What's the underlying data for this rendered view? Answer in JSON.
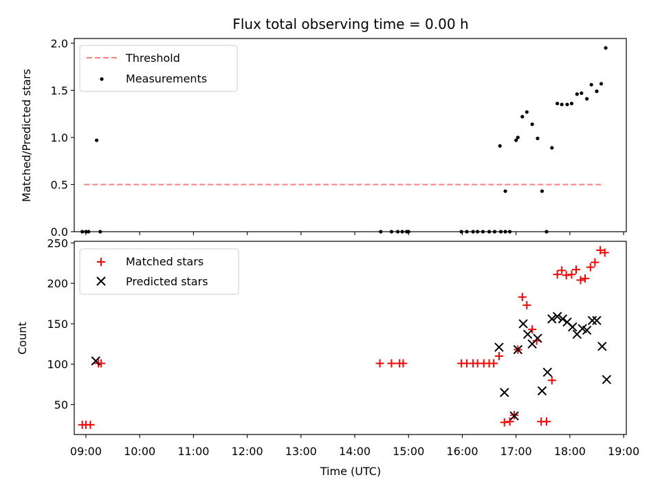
{
  "figure": {
    "title": "Flux total observing time = 0.00 h",
    "xlabel": "Time (UTC)"
  },
  "chart_data": [
    {
      "type": "scatter",
      "ylabel": "Matched/Predicted stars",
      "xlim": [
        "08:47",
        "19:03"
      ],
      "ylim": [
        0,
        2.05
      ],
      "yticks": [
        0.0,
        0.5,
        1.0,
        1.5,
        2.0
      ],
      "ytick_labels": [
        "0.0",
        "0.5",
        "1.0",
        "1.5",
        "2.0"
      ],
      "xticks": [
        "09:00",
        "10:00",
        "11:00",
        "12:00",
        "13:00",
        "14:00",
        "15:00",
        "16:00",
        "17:00",
        "18:00",
        "19:00"
      ],
      "legend_position": "top-left",
      "series": [
        {
          "name": "Threshold",
          "kind": "dashed-line",
          "color": "#ff7f7f",
          "x": [
            "08:58",
            "18:38"
          ],
          "y": [
            0.5,
            0.5
          ]
        },
        {
          "name": "Measurements",
          "kind": "dot",
          "color": "#000000",
          "x": [
            "08:56",
            "09:00",
            "09:03",
            "09:12",
            "09:16",
            "14:29",
            "14:41",
            "14:48",
            "14:53",
            "14:58",
            "15:00",
            "15:59",
            "16:05",
            "16:12",
            "16:17",
            "16:23",
            "16:30",
            "16:36",
            "16:42",
            "16:48",
            "16:43",
            "16:48",
            "16:53",
            "17:00",
            "17:02",
            "17:07",
            "17:12",
            "17:18",
            "17:24",
            "17:29",
            "17:34",
            "17:40",
            "17:46",
            "17:51",
            "17:57",
            "18:02",
            "18:08",
            "18:13",
            "18:19",
            "18:24",
            "18:30",
            "18:35",
            "18:40"
          ],
          "y": [
            0,
            0,
            0,
            0.97,
            0,
            0,
            0,
            0,
            0,
            0,
            0,
            0,
            0,
            0,
            0,
            0,
            0,
            0,
            0.91,
            0.43,
            0,
            0,
            0,
            0.97,
            1.0,
            1.22,
            1.27,
            1.14,
            0.99,
            0.43,
            0,
            0.89,
            1.36,
            1.35,
            1.35,
            1.36,
            1.46,
            1.47,
            1.41,
            1.56,
            1.49,
            1.57,
            1.95
          ]
        }
      ]
    },
    {
      "type": "scatter",
      "ylabel": "Count",
      "xlim": [
        "08:47",
        "19:03"
      ],
      "ylim": [
        13,
        252
      ],
      "yticks": [
        50,
        100,
        150,
        200,
        250
      ],
      "ytick_labels": [
        "50",
        "100",
        "150",
        "200",
        "250"
      ],
      "xticks": [
        "09:00",
        "10:00",
        "11:00",
        "12:00",
        "13:00",
        "14:00",
        "15:00",
        "16:00",
        "17:00",
        "18:00",
        "19:00"
      ],
      "xtick_labels": [
        "09:00",
        "10:00",
        "11:00",
        "12:00",
        "13:00",
        "14:00",
        "15:00",
        "16:00",
        "17:00",
        "18:00",
        "19:00"
      ],
      "legend_position": "top-left",
      "series": [
        {
          "name": "Matched stars",
          "kind": "plus",
          "color": "#ff0000",
          "x": [
            "08:56",
            "09:00",
            "09:05",
            "09:14",
            "09:17",
            "14:28",
            "14:41",
            "14:50",
            "14:54",
            "15:59",
            "16:05",
            "16:12",
            "16:17",
            "16:24",
            "16:30",
            "16:35",
            "16:41",
            "16:47",
            "16:53",
            "16:58",
            "17:02",
            "17:07",
            "17:12",
            "17:18",
            "17:23",
            "17:28",
            "17:34",
            "17:40",
            "17:46",
            "17:51",
            "17:56",
            "18:02",
            "18:07",
            "18:12",
            "18:17",
            "18:23",
            "18:28",
            "18:34",
            "18:39"
          ],
          "y": [
            25,
            25,
            25,
            101,
            101,
            101,
            101,
            101,
            101,
            101,
            101,
            101,
            101,
            101,
            101,
            101,
            110,
            28,
            29,
            37,
            118,
            183,
            173,
            143,
            129,
            29,
            29,
            80,
            211,
            216,
            210,
            211,
            217,
            204,
            206,
            220,
            226,
            241,
            238
          ]
        },
        {
          "name": "Predicted stars",
          "kind": "x",
          "color": "#000000",
          "x": [
            "09:11",
            "16:41",
            "16:47",
            "16:58",
            "17:02",
            "17:08",
            "17:13",
            "17:18",
            "17:24",
            "17:29",
            "17:35",
            "17:40",
            "17:46",
            "17:52",
            "17:57",
            "18:03",
            "18:08",
            "18:14",
            "18:19",
            "18:25",
            "18:30",
            "18:36",
            "18:41"
          ],
          "y": [
            104,
            121,
            65,
            36,
            118,
            150,
            137,
            125,
            132,
            67,
            90,
            156,
            159,
            156,
            152,
            146,
            137,
            144,
            142,
            154,
            154,
            122,
            81
          ]
        }
      ]
    }
  ]
}
